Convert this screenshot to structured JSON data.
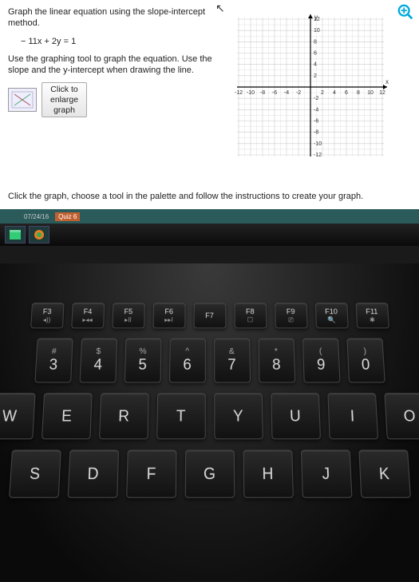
{
  "problem": {
    "line1": "Graph the linear equation using the slope-intercept method.",
    "equation": "− 11x + 2y = 1",
    "line2": "Use the graphing tool to graph the equation. Use the slope and the y-intercept when drawing the line.",
    "enlarge_l1": "Click to",
    "enlarge_l2": "enlarge",
    "enlarge_l3": "graph",
    "instruction": "Click the graph, choose a tool in the palette and follow the instructions to create your graph."
  },
  "graph": {
    "xlim": [
      -12,
      12
    ],
    "ylim": [
      -12,
      12
    ],
    "tick_step": 2,
    "xticks": [
      "-12",
      "-10",
      "-8",
      "-6",
      "-4",
      "-2",
      "2",
      "4",
      "6",
      "8",
      "10",
      "12"
    ],
    "yticks": [
      "12",
      "10",
      "8",
      "6",
      "4",
      "2",
      "-2",
      "-4",
      "-6",
      "-8",
      "-10",
      "-12"
    ],
    "grid_color": "#cccccc",
    "axis_color": "#000000",
    "bg_color": "#ffffff",
    "tick_font": 7,
    "x_label": "x",
    "y_label": "y"
  },
  "tabs": {
    "t1": "07/24/16",
    "t2": "Quiz 6"
  },
  "fn_row": [
    {
      "k": "F3",
      "s": "◂))"
    },
    {
      "k": "F4",
      "s": "▸◂◂"
    },
    {
      "k": "F5",
      "s": "▸II"
    },
    {
      "k": "F6",
      "s": "▸▸I"
    },
    {
      "k": "F7",
      "s": ""
    },
    {
      "k": "F8",
      "s": "☐"
    },
    {
      "k": "F9",
      "s": "⎚"
    },
    {
      "k": "F10",
      "s": "🔍"
    },
    {
      "k": "F11",
      "s": "✱"
    }
  ],
  "num_row": [
    {
      "t": "#",
      "m": "3"
    },
    {
      "t": "$",
      "m": "4"
    },
    {
      "t": "%",
      "m": "5"
    },
    {
      "t": "^",
      "m": "6"
    },
    {
      "t": "&",
      "m": "7"
    },
    {
      "t": "*",
      "m": "8"
    },
    {
      "t": "(",
      "m": "9"
    },
    {
      "t": ")",
      "m": "0"
    }
  ],
  "row_q": [
    "W",
    "E",
    "R",
    "T",
    "Y",
    "U",
    "I",
    "O"
  ],
  "row_a": [
    "S",
    "D",
    "F",
    "G",
    "H",
    "J",
    "K"
  ],
  "colors": {
    "zoom": "#00aadd",
    "key_text": "#dddddd"
  }
}
